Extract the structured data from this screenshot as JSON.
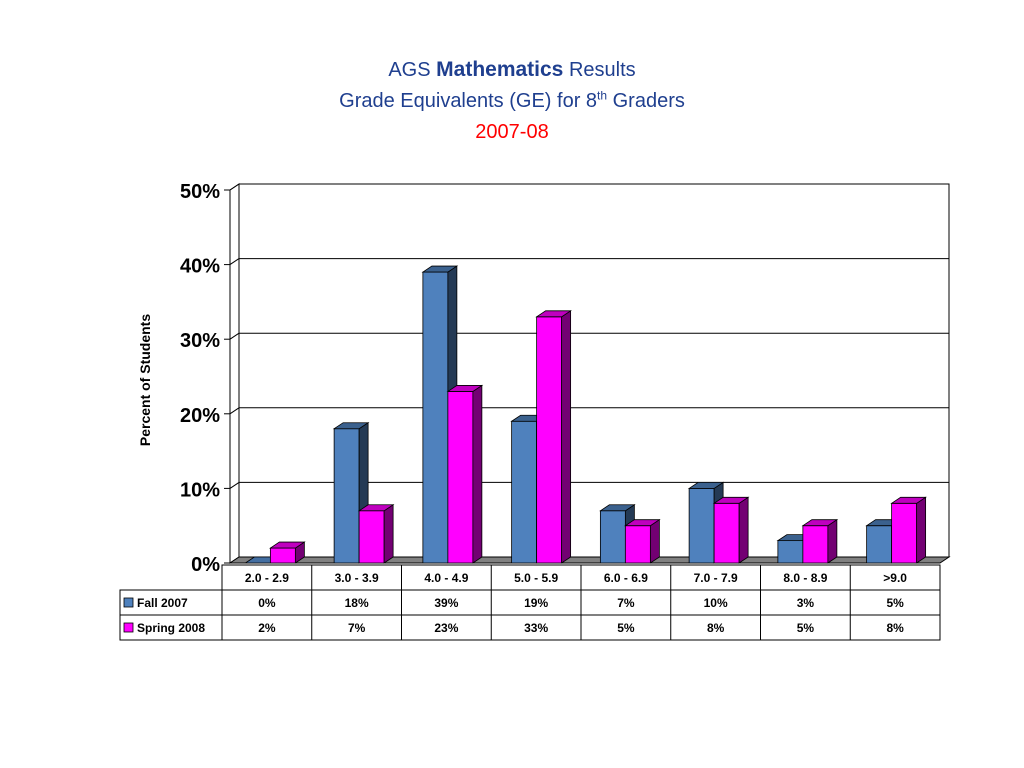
{
  "title": {
    "prefix": "AGS",
    "bold": "Mathematics",
    "suffix": "Results",
    "line2_before": "Grade Equivalents (GE) for 8",
    "line2_sup": "th",
    "line2_after": "Graders",
    "year": "2007-08"
  },
  "colors": {
    "fall": "#4f81bd",
    "spring": "#ff00ff",
    "title": "#1f3f8f",
    "year": "#ff0000"
  },
  "chart_data": {
    "type": "bar",
    "title": "AGS Mathematics Results Grade Equivalents (GE) for 8th Graders 2007-08",
    "xlabel": "",
    "ylabel": "Percent of Students",
    "ylim": [
      0,
      50
    ],
    "yticks": [
      "0%",
      "10%",
      "20%",
      "30%",
      "40%",
      "50%"
    ],
    "grid": true,
    "legend": "data-table",
    "categories": [
      "2.0 - 2.9",
      "3.0 - 3.9",
      "4.0 - 4.9",
      "5.0 - 5.9",
      "6.0 - 6.9",
      "7.0 - 7.9",
      "8.0 - 8.9",
      ">9.0"
    ],
    "series": [
      {
        "name": "Fall 2007",
        "values": [
          0,
          18,
          39,
          19,
          7,
          10,
          3,
          5
        ],
        "labels": [
          "0%",
          "18%",
          "39%",
          "19%",
          "7%",
          "10%",
          "3%",
          "5%"
        ]
      },
      {
        "name": "Spring 2008",
        "values": [
          2,
          7,
          23,
          33,
          5,
          8,
          5,
          8
        ],
        "labels": [
          "2%",
          "7%",
          "23%",
          "33%",
          "5%",
          "8%",
          "5%",
          "8%"
        ]
      }
    ]
  }
}
